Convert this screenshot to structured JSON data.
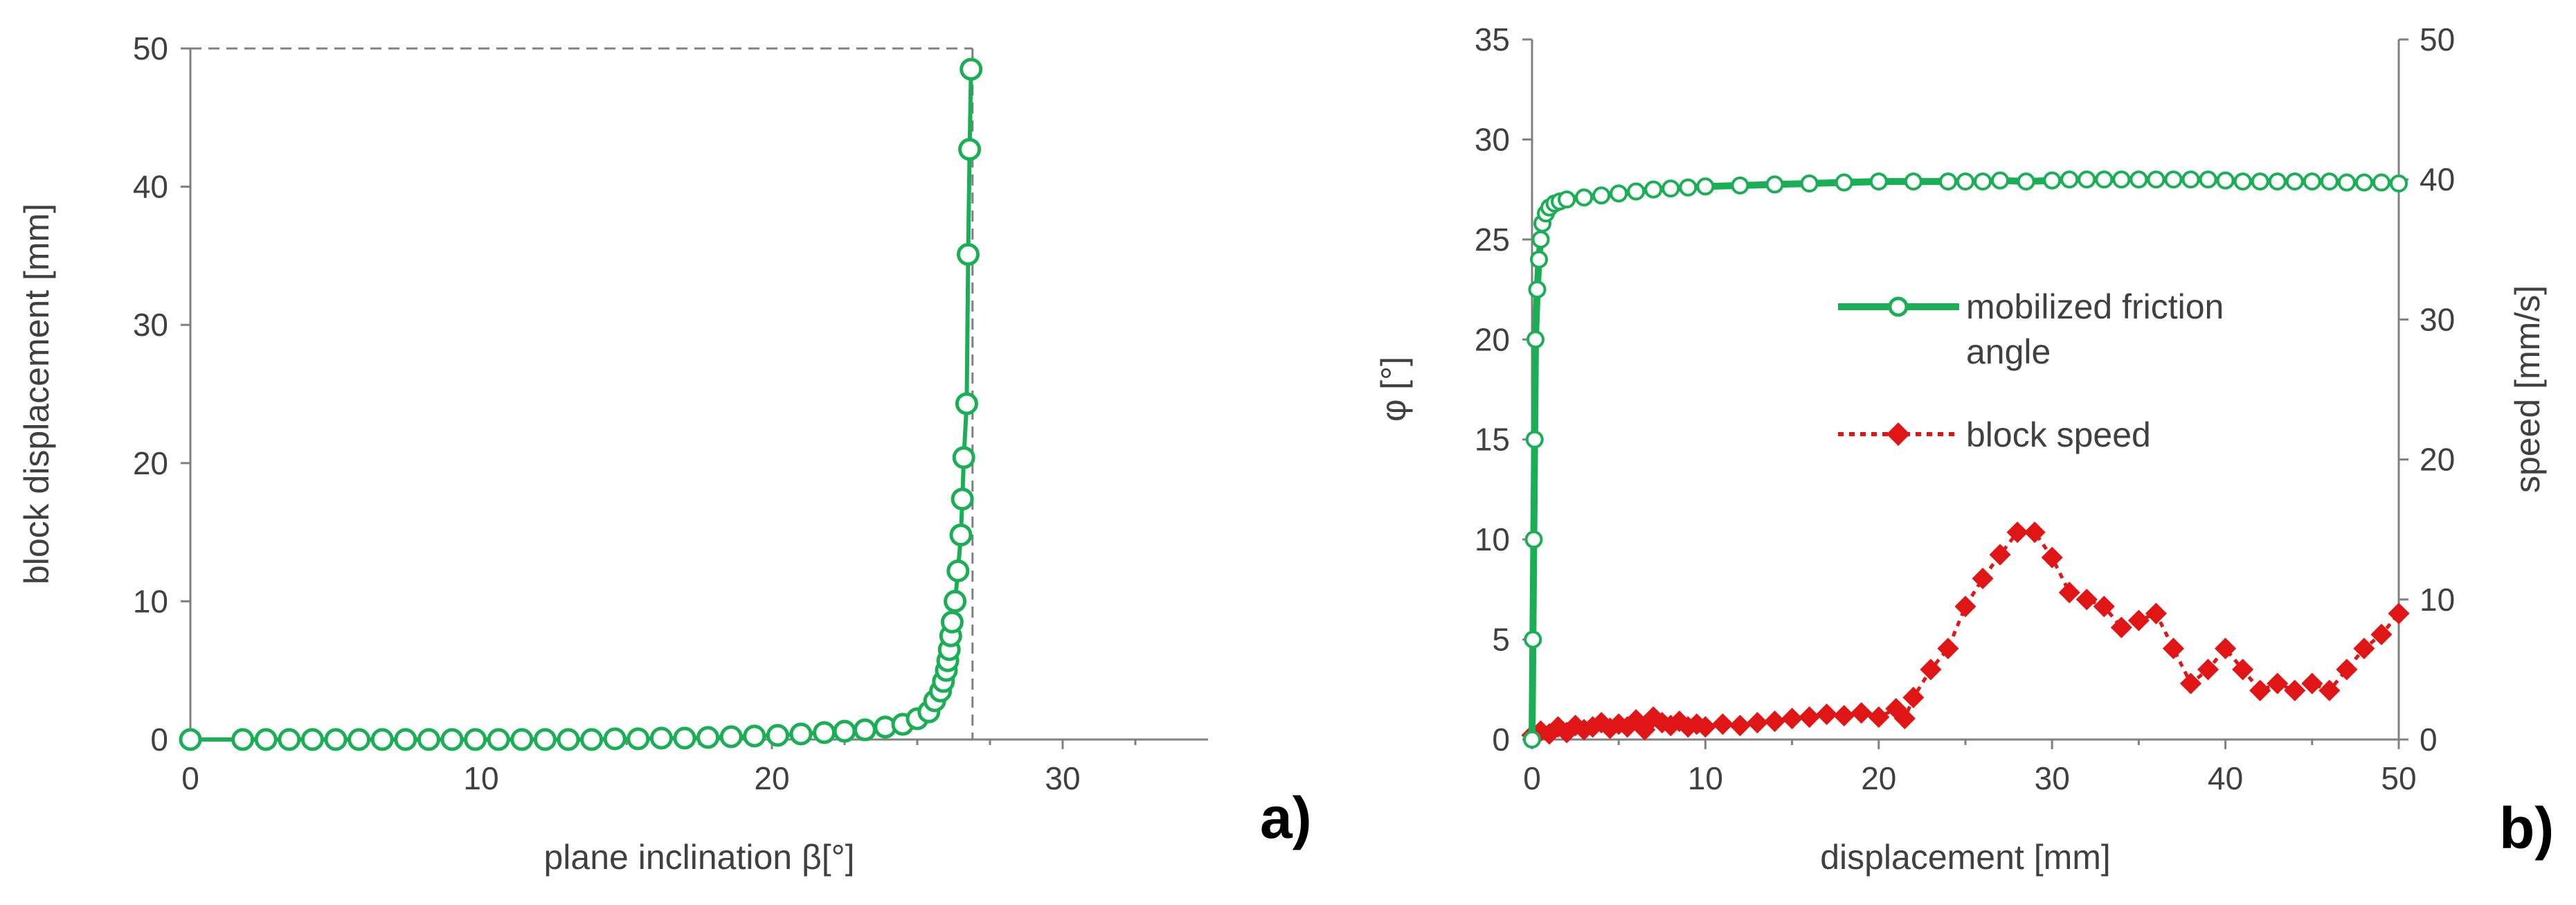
{
  "chart_data": [
    {
      "type": "line",
      "panel_label": "a)",
      "xlabel": "plane inclination β[°]",
      "ylabel": "block displacement [mm]",
      "xlim": [
        0,
        35
      ],
      "ylim": [
        0,
        50
      ],
      "xticks": [
        "0",
        "10",
        "20",
        "30"
      ],
      "yticks": [
        "0",
        "10",
        "20",
        "30",
        "40",
        "50"
      ],
      "guide_x": 26.9,
      "guide_y": 50,
      "colors": {
        "series": "#1aaf54",
        "marker_fill": "#ffffff",
        "guide": "#808080"
      },
      "series": [
        {
          "name": "block displacement",
          "x": [
            0,
            1.8,
            2.6,
            3.4,
            4.2,
            5.0,
            5.8,
            6.6,
            7.4,
            8.2,
            9.0,
            9.8,
            10.6,
            11.4,
            12.2,
            13.0,
            13.8,
            14.6,
            15.4,
            16.2,
            17.0,
            17.8,
            18.6,
            19.4,
            20.2,
            21.0,
            21.8,
            22.5,
            23.2,
            23.9,
            24.5,
            25.0,
            25.4,
            25.6,
            25.8,
            25.9,
            26.0,
            26.05,
            26.1,
            26.15,
            26.2,
            26.3,
            26.4,
            26.5,
            26.55,
            26.6,
            26.7,
            26.75,
            26.8,
            26.85
          ],
          "y": [
            0,
            0,
            0,
            0,
            0,
            0,
            0,
            0,
            0,
            0,
            0,
            0,
            0,
            0,
            0,
            0,
            0,
            0.05,
            0.05,
            0.1,
            0.1,
            0.15,
            0.2,
            0.25,
            0.3,
            0.4,
            0.5,
            0.6,
            0.7,
            0.9,
            1.1,
            1.5,
            2.0,
            2.8,
            3.5,
            4.2,
            5.0,
            5.7,
            6.5,
            7.5,
            8.5,
            10.0,
            12.2,
            14.8,
            17.4,
            20.4,
            24.3,
            35.1,
            42.7,
            48.5
          ]
        }
      ]
    },
    {
      "type": "line",
      "panel_label": "b)",
      "xlabel": "displacement [mm]",
      "ylabel": "φ [°]",
      "ylabel_right": "speed [mm/s]",
      "xlim": [
        0,
        50
      ],
      "ylim": [
        0,
        35
      ],
      "ylim_right": [
        0,
        50
      ],
      "xticks": [
        "0",
        "10",
        "20",
        "30",
        "40",
        "50"
      ],
      "yticks": [
        "0",
        "5",
        "10",
        "15",
        "20",
        "25",
        "30",
        "35"
      ],
      "yticks_right": [
        "0",
        "10",
        "20",
        "30",
        "40",
        "50"
      ],
      "legend_placement": "center-right",
      "colors": {
        "friction": "#1aaf54",
        "speed": "#e01616",
        "marker_fill": "#ffffff"
      },
      "series": [
        {
          "name": "mobilized friction angle",
          "legend_lines": [
            "mobilized friction",
            "angle"
          ],
          "axis": "left",
          "x": [
            0,
            0.05,
            0.1,
            0.15,
            0.2,
            0.3,
            0.4,
            0.5,
            0.6,
            0.8,
            1.0,
            1.3,
            1.6,
            2.0,
            3,
            4,
            5,
            6,
            7,
            8,
            9,
            10,
            12,
            14,
            16,
            18,
            20,
            22,
            24,
            25,
            26,
            27,
            28.5,
            30,
            31,
            32,
            33,
            34,
            35,
            36,
            37,
            38,
            39,
            40,
            41,
            42,
            43,
            44,
            45,
            46,
            47,
            48,
            49,
            50
          ],
          "y": [
            0,
            5,
            10,
            15,
            20,
            22.5,
            24,
            25,
            25.8,
            26.3,
            26.6,
            26.8,
            26.9,
            27.0,
            27.1,
            27.2,
            27.3,
            27.4,
            27.5,
            27.55,
            27.6,
            27.65,
            27.7,
            27.75,
            27.8,
            27.85,
            27.9,
            27.9,
            27.9,
            27.9,
            27.9,
            27.95,
            27.9,
            27.95,
            28.0,
            28.0,
            28.0,
            28.0,
            28.0,
            28.0,
            28.0,
            28.0,
            28.0,
            27.95,
            27.9,
            27.9,
            27.9,
            27.9,
            27.9,
            27.9,
            27.85,
            27.85,
            27.85,
            27.8
          ]
        },
        {
          "name": "block speed",
          "axis": "right",
          "x": [
            0,
            0.5,
            1,
            1.5,
            2,
            2.5,
            3,
            3.5,
            4,
            4.5,
            5,
            5.5,
            6,
            6.5,
            7,
            7.5,
            8,
            8.5,
            9,
            9.5,
            10,
            11,
            12,
            13,
            14,
            15,
            16,
            17,
            18,
            19,
            20,
            21,
            21.5,
            22,
            23,
            24,
            25,
            26,
            27,
            28,
            29,
            30,
            31,
            32,
            33,
            34,
            35,
            36,
            37,
            38,
            39,
            40,
            41,
            42,
            43,
            44,
            45,
            46,
            47,
            48,
            49,
            50
          ],
          "y": [
            0.3,
            0.6,
            0.4,
            0.9,
            0.5,
            1.0,
            0.7,
            0.9,
            1.2,
            0.8,
            1.1,
            0.9,
            1.4,
            0.7,
            1.6,
            1.2,
            1.0,
            1.3,
            0.9,
            1.1,
            0.9,
            1.1,
            1.0,
            1.2,
            1.3,
            1.5,
            1.6,
            1.8,
            1.7,
            1.9,
            1.6,
            2.2,
            1.5,
            3.0,
            5.0,
            6.5,
            9.5,
            11.5,
            13.2,
            14.8,
            14.8,
            13.0,
            10.5,
            10.0,
            9.5,
            8.0,
            8.5,
            9.0,
            6.5,
            4.0,
            5.0,
            6.5,
            5.0,
            3.5,
            4.0,
            3.5,
            4.0,
            3.5,
            5.0,
            6.5,
            7.5,
            9.0
          ]
        }
      ]
    }
  ]
}
